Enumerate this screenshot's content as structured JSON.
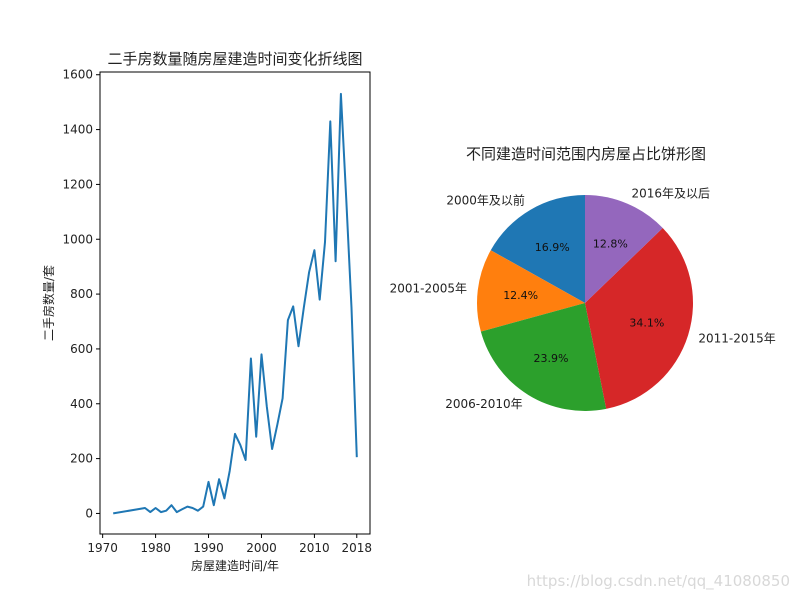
{
  "watermark": "https://blog.csdn.net/qq_41080850",
  "chart_data": [
    {
      "type": "line",
      "title": "二手房数量随房屋建造时间变化折线图",
      "xlabel": "房屋建造时间/年",
      "ylabel": "二手房数量/套",
      "xlim": [
        1969.5,
        2020.5
      ],
      "ylim": [
        -75,
        1610
      ],
      "xticks": [
        1970,
        1980,
        1990,
        2000,
        2010,
        2018
      ],
      "yticks": [
        0,
        200,
        400,
        600,
        800,
        1000,
        1200,
        1400,
        1600
      ],
      "grid": false,
      "color": "#1f77b4",
      "x": [
        1972,
        1978,
        1979,
        1980,
        1981,
        1982,
        1983,
        1984,
        1985,
        1986,
        1987,
        1988,
        1989,
        1990,
        1991,
        1992,
        1993,
        1994,
        1995,
        1996,
        1997,
        1998,
        1999,
        2000,
        2001,
        2002,
        2003,
        2004,
        2005,
        2006,
        2007,
        2008,
        2009,
        2010,
        2011,
        2012,
        2013,
        2014,
        2015,
        2016,
        2017,
        2018
      ],
      "y": [
        0,
        20,
        5,
        20,
        5,
        10,
        30,
        5,
        15,
        25,
        20,
        10,
        25,
        115,
        30,
        125,
        55,
        155,
        290,
        250,
        195,
        565,
        280,
        580,
        390,
        235,
        325,
        420,
        705,
        755,
        610,
        750,
        880,
        960,
        780,
        990,
        1430,
        920,
        1530,
        1150,
        750,
        205
      ]
    },
    {
      "type": "pie",
      "title": "不同建造时间范围内房屋占比饼形图",
      "start_angle_deg": 90,
      "direction": "counterclockwise",
      "slices": [
        {
          "label": "2000年及以前",
          "value": 16.9,
          "pct_label": "16.9%",
          "color": "#1f77b4"
        },
        {
          "label": "2001-2005年",
          "value": 12.4,
          "pct_label": "12.4%",
          "color": "#ff7f0e"
        },
        {
          "label": "2006-2010年",
          "value": 23.9,
          "pct_label": "23.9%",
          "color": "#2ca02c"
        },
        {
          "label": "2011-2015年",
          "value": 34.1,
          "pct_label": "34.1%",
          "color": "#d62728"
        },
        {
          "label": "2016年及以后",
          "value": 12.8,
          "pct_label": "12.8%",
          "color": "#9467bd"
        }
      ]
    }
  ]
}
